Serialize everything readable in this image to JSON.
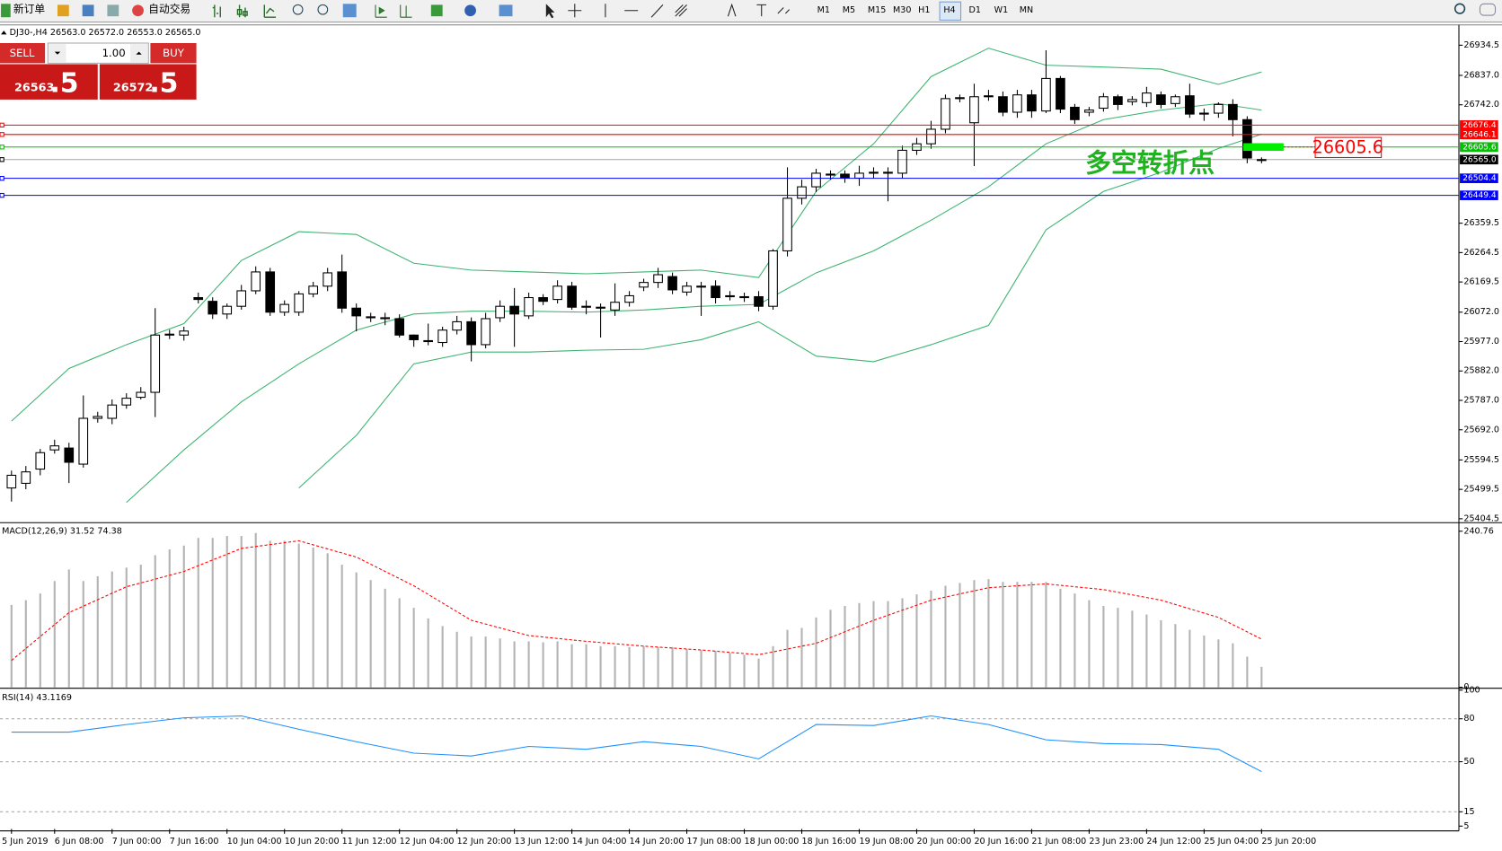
{
  "toolbar": {
    "new_order": "新订单",
    "auto_trading": "自动交易",
    "timeframes": [
      "M1",
      "M5",
      "M15",
      "M30",
      "H1",
      "H4",
      "D1",
      "W1",
      "MN"
    ]
  },
  "trade_panel": {
    "sell": "SELL",
    "buy": "BUY",
    "lots": "1.00",
    "bid_big": "26563",
    "bid_small": ".5",
    "ask_big": "26572",
    "ask_small": ".5"
  },
  "chart_data": [
    {
      "type": "candlestick",
      "title": "DJ30-,H4  26563.0 26572.0 26553.0 26565.0",
      "categories": [
        "5 Jun 2019",
        null,
        null,
        "6 Jun 08:00",
        null,
        null,
        null,
        "7 Jun 00:00",
        null,
        null,
        null,
        "7 Jun 16:00",
        null,
        null,
        null,
        "10 Jun 04:00",
        null,
        null,
        null,
        "10 Jun 20:00",
        null,
        null,
        null,
        "11 Jun 12:00",
        null,
        null,
        null,
        "12 Jun 04:00",
        null,
        null,
        null,
        "12 Jun 20:00",
        null,
        null,
        null,
        "13 Jun 12:00",
        null,
        null,
        null,
        "14 Jun 04:00",
        null,
        null,
        null,
        "14 Jun 20:00",
        null,
        null,
        null,
        "17 Jun 08:00",
        null,
        null,
        null,
        "18 Jun 00:00",
        null,
        null,
        null,
        "18 Jun 16:00",
        null,
        null,
        null,
        "19 Jun 08:00",
        null,
        null,
        null,
        "20 Jun 00:00",
        null,
        null,
        null,
        "20 Jun 16:00",
        null,
        null,
        null,
        "21 Jun 08:00",
        null,
        null,
        null,
        "23 Jun 23:00",
        null,
        null,
        null,
        "24 Jun 12:00",
        null,
        null,
        null,
        "25 Jun 04:00",
        null,
        null,
        null,
        "25 Jun 20:00"
      ],
      "open": [
        25504,
        25519,
        25565,
        25627,
        25633,
        25581,
        25729,
        25729,
        25772,
        25797,
        25813,
        25998,
        25998,
        26119,
        26107,
        26066,
        26091,
        26141,
        26202,
        26072,
        26072,
        26131,
        26156,
        26202,
        26085,
        26057,
        26054,
        26051,
        25998,
        25977,
        25974,
        26014,
        26041,
        25967,
        26054,
        26091,
        26060,
        26119,
        26113,
        26156,
        26091,
        26088,
        26079,
        26104,
        26153,
        26168,
        26187,
        26137,
        26156,
        26156,
        26122,
        26122,
        26122,
        26091,
        26270,
        26440,
        26477,
        26515,
        26518,
        26505,
        26521,
        26524,
        26521,
        26595,
        26616,
        26663,
        26762,
        26684,
        26768,
        26768,
        26718,
        26774,
        26722,
        26827,
        26734,
        26718,
        26731,
        26768,
        26752,
        26749,
        26774,
        26746,
        26771,
        26712,
        26715,
        26743,
        26694,
        26563
      ],
      "high": [
        25560,
        25575,
        25630,
        25660,
        25650,
        25803,
        25750,
        25790,
        25810,
        25830,
        26085,
        26015,
        26025,
        26135,
        26120,
        26100,
        26160,
        26220,
        26215,
        26110,
        26140,
        26170,
        26215,
        26258,
        26100,
        26070,
        26070,
        26065,
        26000,
        26035,
        26025,
        26060,
        26055,
        26070,
        26110,
        26150,
        26135,
        26130,
        26175,
        26170,
        26110,
        26100,
        26165,
        26140,
        26180,
        26215,
        26200,
        26170,
        26170,
        26175,
        26140,
        26135,
        26140,
        26276,
        26540,
        26500,
        26535,
        26530,
        26530,
        26545,
        26540,
        26540,
        26610,
        26635,
        26690,
        26775,
        26775,
        26810,
        26790,
        26785,
        26790,
        26790,
        26918,
        26835,
        26745,
        26735,
        26780,
        26775,
        26770,
        26800,
        26785,
        26775,
        26810,
        26730,
        26750,
        26760,
        26705,
        26572
      ],
      "low": [
        25460,
        25500,
        25545,
        25615,
        25520,
        25570,
        25715,
        25710,
        25760,
        25790,
        25733,
        25985,
        25980,
        26100,
        26050,
        26050,
        26080,
        26130,
        26060,
        26060,
        26060,
        26120,
        26140,
        26070,
        26010,
        26040,
        26030,
        25990,
        25960,
        25965,
        25960,
        26000,
        25913,
        25955,
        26040,
        25960,
        26050,
        26095,
        26100,
        26080,
        26065,
        25990,
        26060,
        26090,
        26140,
        26150,
        26130,
        26125,
        26060,
        26100,
        26110,
        26105,
        26075,
        26080,
        26252,
        26420,
        26460,
        26500,
        26490,
        26480,
        26505,
        26430,
        26505,
        26580,
        26600,
        26650,
        26750,
        26544,
        26755,
        26705,
        26700,
        26700,
        26715,
        26715,
        26680,
        26705,
        26720,
        26725,
        26740,
        26735,
        26730,
        26735,
        26700,
        26690,
        26700,
        26640,
        26553,
        26553
      ],
      "close": [
        25545,
        25556,
        25618,
        25640,
        25587,
        25729,
        25735,
        25772,
        25794,
        25813,
        25998,
        26001,
        26011,
        26113,
        26066,
        26091,
        26141,
        26202,
        26072,
        26097,
        26131,
        26156,
        26199,
        26085,
        26060,
        26054,
        26051,
        25998,
        25983,
        25980,
        26014,
        26041,
        25967,
        26051,
        26091,
        26066,
        26119,
        26107,
        26156,
        26088,
        26088,
        26085,
        26104,
        26125,
        26168,
        26193,
        26144,
        26156,
        26153,
        26119,
        26125,
        26119,
        26091,
        26270,
        26440,
        26477,
        26521,
        26518,
        26505,
        26521,
        26524,
        26521,
        26595,
        26616,
        26663,
        26762,
        26765,
        26768,
        26771,
        26718,
        26774,
        26722,
        26827,
        26728,
        26694,
        26725,
        26768,
        26743,
        26759,
        26780,
        26743,
        26768,
        26712,
        26715,
        26743,
        26694,
        26570,
        26565
      ],
      "up_color": "#ffffff",
      "down_color": "#000000",
      "overlays": [
        {
          "color": "#3cb371",
          "x": [
            0,
            4,
            8,
            12,
            16,
            20,
            24,
            28,
            32,
            36,
            40,
            44,
            48,
            52,
            56,
            60,
            64,
            68,
            72,
            76,
            80,
            84,
            87
          ],
          "values": [
            25720,
            25890,
            25967,
            26035,
            26239,
            26332,
            26323,
            26230,
            26208,
            26202,
            26196,
            26202,
            26208,
            26184,
            26462,
            26616,
            26833,
            26925,
            26870,
            26864,
            26857,
            26808,
            26848
          ]
        },
        {
          "color": "#3cb371",
          "x": [
            0,
            4,
            8,
            12,
            16,
            20,
            24,
            28,
            32,
            36,
            40,
            44,
            48,
            52,
            56,
            60,
            64,
            68,
            72,
            76,
            80,
            84,
            87
          ],
          "values": [
            null,
            null,
            25457,
            25627,
            25782,
            25905,
            26014,
            26066,
            26075,
            26075,
            26072,
            26079,
            26091,
            26097,
            26199,
            26270,
            26369,
            26477,
            26616,
            26694,
            26725,
            26746,
            26725
          ]
        },
        {
          "color": "#3cb371",
          "x": [
            0,
            4,
            8,
            12,
            16,
            20,
            24,
            28,
            32,
            36,
            40,
            44,
            48,
            52,
            56,
            60,
            64,
            68,
            72,
            76,
            80,
            84,
            87
          ],
          "values": [
            null,
            null,
            null,
            null,
            null,
            25504,
            25674,
            25905,
            25943,
            25943,
            25949,
            25952,
            25983,
            26041,
            25930,
            25912,
            25967,
            26029,
            26338,
            26462,
            26524,
            26601,
            26647
          ]
        }
      ],
      "levels": [
        {
          "value": 26676.4,
          "color": "#ff0000"
        },
        {
          "value": 26646.1,
          "color": "#ff0000"
        },
        {
          "value": 26605.6,
          "color": "#00c000"
        },
        {
          "value": 26565,
          "label": "26565.0",
          "color": "#000000"
        },
        {
          "value": 26504.4,
          "color": "#0000ff"
        },
        {
          "value": 26449.4,
          "color": "#0000ff"
        }
      ],
      "annotation": {
        "text": "多空转折点",
        "color": "#1fb41f"
      },
      "marker": {
        "value": 26605.6,
        "color": "#ff0000",
        "fill": "#00ee00"
      },
      "ylim": [
        25395,
        26997
      ],
      "yticks": [
        26934.5,
        {
          "value": 26837,
          "label": "26837.0"
        },
        {
          "value": 26742,
          "label": "26742.0"
        },
        26359.5,
        26264.5,
        26169.5,
        {
          "value": 26072,
          "label": "26072.0"
        },
        {
          "value": 25977,
          "label": "25977.0"
        },
        {
          "value": 25882,
          "label": "25882.0"
        },
        {
          "value": 25787,
          "label": "25787.0"
        },
        {
          "value": 25692,
          "label": "25692.0"
        },
        25594.5,
        25499.5,
        25404.5
      ]
    },
    {
      "type": "bar",
      "title": "MACD(12,26,9) 31.52 74.38",
      "color": "#b4b4b4",
      "values": [
        127.0,
        134.4,
        144.7,
        163.9,
        181.7,
        163.9,
        171.3,
        178.7,
        184.6,
        189.1,
        203.8,
        212.7,
        218.6,
        230.4,
        230.4,
        233.4,
        233.4,
        238.0,
        226.0,
        226.0,
        221.6,
        215.6,
        206.8,
        189.1,
        177.2,
        165.4,
        152.1,
        137.4,
        122.6,
        106.3,
        94.5,
        85.7,
        78.3,
        78.3,
        75.3,
        70.9,
        70.9,
        69.4,
        70.9,
        66.5,
        66.5,
        63.5,
        63.5,
        62.0,
        63.5,
        62.0,
        62.0,
        59.1,
        57.6,
        56.1,
        53.2,
        50.2,
        44.3,
        63.5,
        88.6,
        91.6,
        107.8,
        119.6,
        125.5,
        130.0,
        132.9,
        132.9,
        137.4,
        143.3,
        149.2,
        156.6,
        161.0,
        165.4,
        166.9,
        162.5,
        162.5,
        162.5,
        162.5,
        152.1,
        144.7,
        134.4,
        125.5,
        122.6,
        118.2,
        112.3,
        103.4,
        97.5,
        88.6,
        79.8,
        73.9,
        67.9,
        47.3,
        31.52
      ],
      "signal": {
        "color": "#ff0000",
        "x": [
          0,
          4,
          8,
          12,
          16,
          20,
          24,
          28,
          32,
          36,
          40,
          44,
          48,
          52,
          56,
          60,
          64,
          68,
          72,
          76,
          80,
          84,
          87
        ],
        "values": [
          41.4,
          115.2,
          155.1,
          178.7,
          214.2,
          226.0,
          200.9,
          156.6,
          103.4,
          79.8,
          70.9,
          63.5,
          57.6,
          50.2,
          67.9,
          103.4,
          134.4,
          153.6,
          159.5,
          150.7,
          134.4,
          107.8,
          74.38
        ]
      },
      "ylim": [
        0,
        251
      ],
      "yticks": [
        0,
        240.76
      ]
    },
    {
      "type": "line",
      "title": "RSI(14) 43.1169",
      "color": "#1e90ff",
      "x": [
        0,
        4,
        8,
        12,
        16,
        20,
        24,
        28,
        32,
        36,
        40,
        44,
        48,
        52,
        56,
        60,
        64,
        68,
        72,
        76,
        80,
        84,
        87
      ],
      "values": [
        70.7,
        70.7,
        76.0,
        80.7,
        82.0,
        72.7,
        64.0,
        56.0,
        54.0,
        60.7,
        58.7,
        64.0,
        60.7,
        52.0,
        76.0,
        75.3,
        82.0,
        76.0,
        65.3,
        62.7,
        62.0,
        58.7,
        43.1169
      ],
      "levels": [
        15,
        50,
        80
      ],
      "ylim": [
        3,
        100
      ],
      "yticks": [
        5,
        15,
        50,
        80,
        100
      ]
    }
  ]
}
